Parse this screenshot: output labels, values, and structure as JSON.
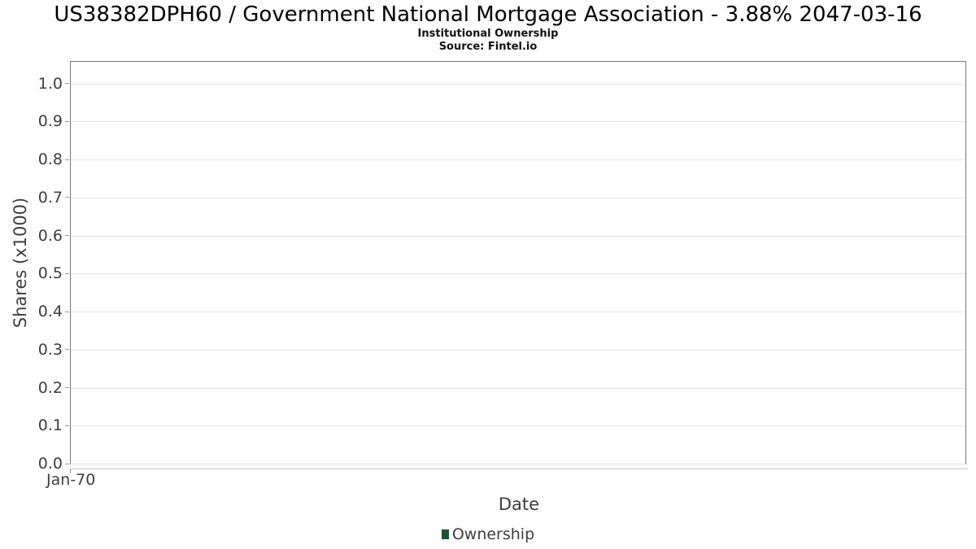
{
  "chart_data": {
    "type": "line",
    "title": "US38382DPH60 / Government National Mortgage Association - 3.88% 2047-03-16",
    "subtitle": "Institutional Ownership",
    "source": "Source: Fintel.io",
    "xlabel": "Date",
    "ylabel": "Shares (x1000)",
    "xticks": [
      "Jan-70"
    ],
    "yticks": [
      "1.0",
      "0.9",
      "0.8",
      "0.7",
      "0.6",
      "0.5",
      "0.4",
      "0.3",
      "0.2",
      "0.1",
      "0.0"
    ],
    "ylim": [
      0,
      1.057
    ],
    "grid": true,
    "legend_position": "bottom",
    "series": [
      {
        "name": "Ownership",
        "color": "#1e5130",
        "x": [],
        "values": []
      }
    ],
    "colors": {
      "grid": "#e6e6e6",
      "axis_border": "#777777",
      "tick": "#999999",
      "tick_label": "#3d3d3d",
      "secondary_axis_line": "#c9c9c9",
      "title": "#000000"
    }
  }
}
